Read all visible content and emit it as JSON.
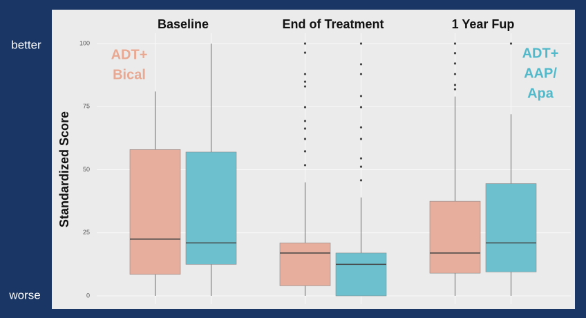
{
  "chart_data": {
    "type": "box",
    "categories": [
      "Baseline",
      "End of Treatment",
      "1 Year Fup"
    ],
    "y_label": "Standardized Score",
    "y_top_label": "better",
    "y_bottom_label": "worse",
    "ylim": [
      0,
      100
    ],
    "yticks": [
      0,
      25,
      50,
      75,
      100
    ],
    "grid": true,
    "series": [
      {
        "label_lines": [
          "ADT+",
          "Bical"
        ],
        "color": "#e8ae9d",
        "text_color": "#e9a891",
        "boxes": [
          {
            "min": 0,
            "q1": 8.5,
            "median": 22.5,
            "q3": 58,
            "max": 81,
            "outliers": []
          },
          {
            "min": 0,
            "q1": 4,
            "median": 17,
            "q3": 21,
            "max": 45,
            "outliers": [
              100,
              96.4,
              87.9,
              84.9,
              83,
              74.8,
              69.3,
              66.3,
              62.2,
              57.3,
              51.8
            ]
          },
          {
            "min": 0,
            "q1": 9,
            "median": 17,
            "q3": 37.5,
            "max": 79,
            "outliers": [
              100,
              96.2,
              92.1,
              87.9,
              83.6,
              81.9
            ]
          }
        ]
      },
      {
        "label_lines": [
          "ADT+",
          "AAP/",
          "Apa"
        ],
        "color": "#6dc1cf",
        "text_color": "#52b9ca",
        "boxes": [
          {
            "min": 0,
            "q1": 12.5,
            "median": 21,
            "q3": 57,
            "max": 100,
            "outliers": []
          },
          {
            "min": 0,
            "q1": 0,
            "median": 12.5,
            "q3": 17,
            "max": 39,
            "outliers": [
              100,
              91.8,
              87.9,
              79.2,
              74.8,
              66.8,
              62.2,
              54.5,
              51.2,
              45.8
            ]
          },
          {
            "min": 0,
            "q1": 9.5,
            "median": 21,
            "q3": 44.5,
            "max": 72,
            "outliers": [
              100
            ]
          }
        ]
      }
    ]
  }
}
